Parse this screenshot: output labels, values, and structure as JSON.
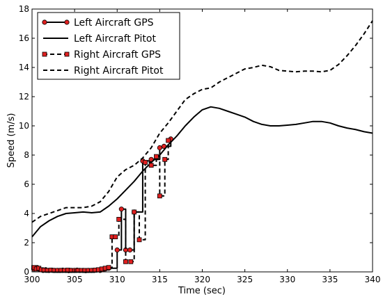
{
  "chart_data": {
    "type": "line",
    "xlabel": "Time (sec)",
    "ylabel": "Speed (m/s)",
    "xlim": [
      300,
      340
    ],
    "ylim": [
      0,
      18
    ],
    "xticks": [
      300,
      305,
      310,
      315,
      320,
      325,
      330,
      335,
      340
    ],
    "yticks": [
      0,
      2,
      4,
      6,
      8,
      10,
      12,
      14,
      16,
      18
    ],
    "grid": false,
    "legend_position": "top-left",
    "series": [
      {
        "name": "Left Aircraft GPS",
        "style": "solid-step-markers",
        "color": "#000000",
        "marker": "circle",
        "marker_color": "#e02020",
        "x": [
          300.2,
          300.4,
          300.6,
          300.8,
          301.0,
          301.3,
          301.6,
          302.0,
          302.3,
          302.6,
          303.0,
          303.3,
          303.6,
          304.0,
          304.3,
          304.6,
          305.0,
          305.3,
          305.6,
          306.0,
          306.3,
          306.6,
          307.0,
          307.3,
          307.6,
          308.0,
          308.3,
          308.6,
          309.0,
          310.0,
          310.5,
          311.0,
          311.5,
          312.0,
          313.0,
          314.0,
          315.0,
          315.5,
          316.3
        ],
        "y": [
          0.2,
          0.25,
          0.3,
          0.2,
          0.15,
          0.1,
          0.15,
          0.1,
          0.12,
          0.1,
          0.1,
          0.1,
          0.12,
          0.1,
          0.08,
          0.1,
          0.1,
          0.12,
          0.1,
          0.1,
          0.08,
          0.1,
          0.1,
          0.1,
          0.12,
          0.1,
          0.15,
          0.2,
          0.25,
          1.5,
          4.3,
          1.5,
          1.5,
          4.1,
          7.6,
          7.7,
          8.5,
          8.6,
          9.1
        ]
      },
      {
        "name": "Left Aircraft Pitot",
        "style": "solid",
        "color": "#000000",
        "x": [
          300,
          301,
          302,
          303,
          304,
          305,
          306,
          307,
          308,
          309,
          310,
          311,
          312,
          313,
          314,
          315,
          316,
          317,
          318,
          319,
          320,
          321,
          322,
          323,
          324,
          325,
          326,
          327,
          328,
          329,
          330,
          331,
          332,
          333,
          334,
          335,
          336,
          337,
          338,
          339,
          340
        ],
        "y": [
          2.4,
          3.1,
          3.5,
          3.8,
          4.0,
          4.05,
          4.1,
          4.05,
          4.1,
          4.5,
          5.0,
          5.6,
          6.2,
          6.9,
          7.5,
          8.0,
          8.7,
          9.3,
          10.0,
          10.6,
          11.1,
          11.3,
          11.2,
          11.0,
          10.8,
          10.6,
          10.3,
          10.1,
          10.0,
          10.0,
          10.05,
          10.1,
          10.2,
          10.3,
          10.3,
          10.2,
          10.0,
          9.85,
          9.75,
          9.6,
          9.5
        ]
      },
      {
        "name": "Right Aircraft GPS",
        "style": "dashed-step-markers",
        "color": "#000000",
        "marker": "square",
        "marker_color": "#e02020",
        "x": [
          300.2,
          300.5,
          300.8,
          301.1,
          301.4,
          301.8,
          302.2,
          302.6,
          303.0,
          303.4,
          303.8,
          304.2,
          304.6,
          305.0,
          305.4,
          305.8,
          306.2,
          306.6,
          307.0,
          307.4,
          307.8,
          308.2,
          308.6,
          309.0,
          309.4,
          309.8,
          310.2,
          311.0,
          311.6,
          312.0,
          312.6,
          313.3,
          314.0,
          314.6,
          315.0,
          315.6,
          316.0
        ],
        "y": [
          0.3,
          0.2,
          0.25,
          0.15,
          0.12,
          0.1,
          0.12,
          0.1,
          0.1,
          0.1,
          0.1,
          0.12,
          0.1,
          0.1,
          0.1,
          0.1,
          0.1,
          0.1,
          0.1,
          0.12,
          0.15,
          0.2,
          0.25,
          0.3,
          2.4,
          2.4,
          3.6,
          0.7,
          0.7,
          4.1,
          2.2,
          7.5,
          7.3,
          7.9,
          5.2,
          7.7,
          9.0
        ]
      },
      {
        "name": "Right Aircraft Pitot",
        "style": "dashed",
        "color": "#000000",
        "x": [
          300,
          301,
          302,
          303,
          304,
          305,
          306,
          307,
          308,
          309,
          310,
          311,
          312,
          313,
          314,
          315,
          316,
          317,
          318,
          319,
          320,
          321,
          322,
          323,
          324,
          325,
          326,
          327,
          328,
          329,
          330,
          331,
          332,
          333,
          334,
          335,
          336,
          337,
          338,
          339,
          340
        ],
        "y": [
          3.4,
          3.8,
          4.0,
          4.2,
          4.4,
          4.4,
          4.4,
          4.5,
          4.8,
          5.5,
          6.5,
          7.0,
          7.3,
          7.8,
          8.5,
          9.5,
          10.2,
          11.0,
          11.8,
          12.2,
          12.5,
          12.6,
          13.0,
          13.3,
          13.6,
          13.9,
          14.0,
          14.15,
          14.05,
          13.8,
          13.75,
          13.7,
          13.75,
          13.75,
          13.7,
          13.8,
          14.2,
          14.8,
          15.5,
          16.3,
          17.2
        ]
      }
    ]
  }
}
